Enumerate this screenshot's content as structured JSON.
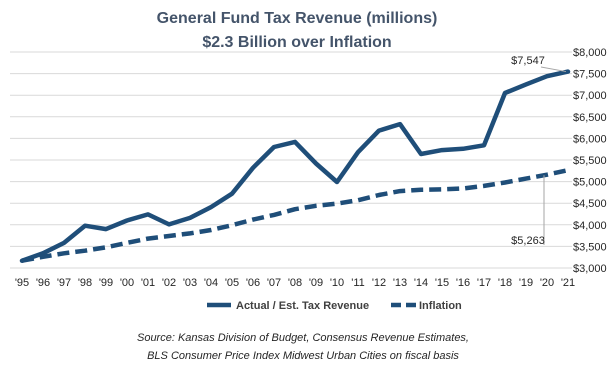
{
  "chart_data": {
    "type": "line",
    "title": "General Fund Tax Revenue (millions)",
    "subtitle": "$2.3 Billion over Inflation",
    "categories": [
      "'95",
      "'96",
      "'97",
      "'98",
      "'99",
      "'00",
      "'01",
      "'02",
      "'03",
      "'04",
      "'05",
      "'06",
      "'07",
      "'08",
      "'09",
      "'10",
      "'11",
      "'12",
      "'13",
      "'14",
      "'15",
      "'16",
      "'17",
      "'18",
      "'19",
      "'20",
      "'21"
    ],
    "series": [
      {
        "name": "Actual / Est. Tax Revenue",
        "style": "solid",
        "color": "#1f4e79",
        "values": [
          3170,
          3340,
          3580,
          3980,
          3900,
          4100,
          4240,
          4010,
          4160,
          4410,
          4720,
          5320,
          5800,
          5920,
          5420,
          4990,
          5680,
          6180,
          6330,
          5640,
          5730,
          5760,
          5840,
          7050,
          7250,
          7440,
          7547
        ]
      },
      {
        "name": "Inflation",
        "style": "dashed",
        "color": "#1f4e79",
        "values": [
          3170,
          3260,
          3340,
          3400,
          3480,
          3580,
          3680,
          3740,
          3800,
          3880,
          3990,
          4120,
          4230,
          4360,
          4440,
          4490,
          4570,
          4690,
          4780,
          4810,
          4820,
          4840,
          4900,
          4980,
          5070,
          5160,
          5263
        ]
      }
    ],
    "ylim": [
      3000,
      8000
    ],
    "yticks": [
      3000,
      3500,
      4000,
      4500,
      5000,
      5500,
      6000,
      6500,
      7000,
      7500,
      8000
    ],
    "ytick_labels": [
      "$3,000",
      "$3,500",
      "$4,000",
      "$4,500",
      "$5,000",
      "$5,500",
      "$6,000",
      "$6,500",
      "$7,000",
      "$7,500",
      "$8,000"
    ],
    "y_axis_position": "right",
    "grid": true,
    "legend_position": "bottom",
    "annotations": [
      {
        "text": "$7,547",
        "series": 0,
        "index": 26
      },
      {
        "text": "$5,263",
        "series": 1,
        "index": 26
      }
    ],
    "source_note": [
      "Source: Kansas Division of Budget, Consensus Revenue Estimates,",
      "BLS Consumer Price Index Midwest Urban Cities on fiscal basis"
    ]
  }
}
